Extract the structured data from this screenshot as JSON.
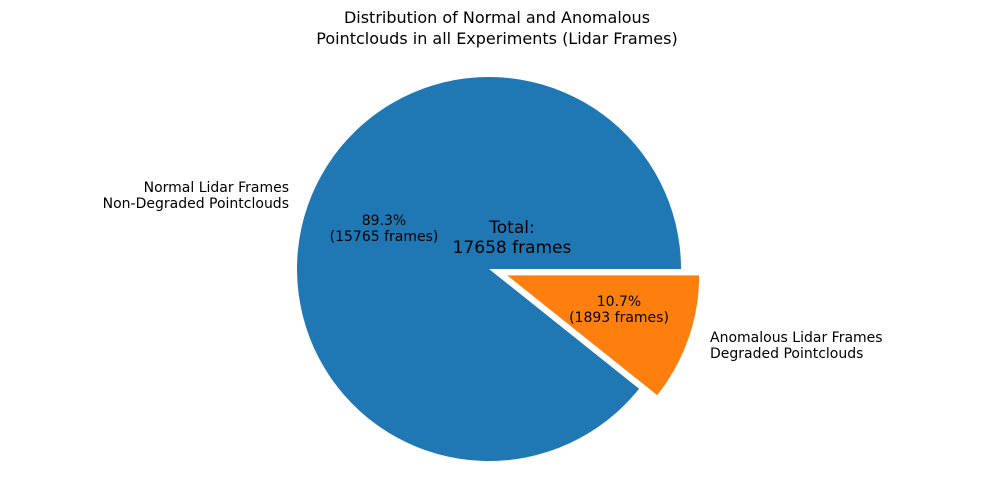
{
  "chart_data": {
    "type": "pie",
    "title": "Distribution of Normal and Anomalous\nPointclouds in all Experiments (Lidar Frames)",
    "total": 17658,
    "center_text": "Total:\n17658 frames",
    "startangle": 0,
    "counterclock": true,
    "legend": "none",
    "background": "#ffffff",
    "text_color": "#000000",
    "slices": [
      {
        "label": "Normal Lidar Frames\nNon-Degraded Pointclouds",
        "value": 15765,
        "pct": 89.3,
        "pct_label": "89.3%\n(15765 frames)",
        "color": "#1f77b4",
        "explode": 0
      },
      {
        "label": "Anomalous Lidar Frames\nDegraded Pointclouds",
        "value": 1893,
        "pct": 10.7,
        "pct_label": "10.7%\n(1893 frames)",
        "color": "#ff7f0e",
        "explode": 0.1
      }
    ]
  }
}
